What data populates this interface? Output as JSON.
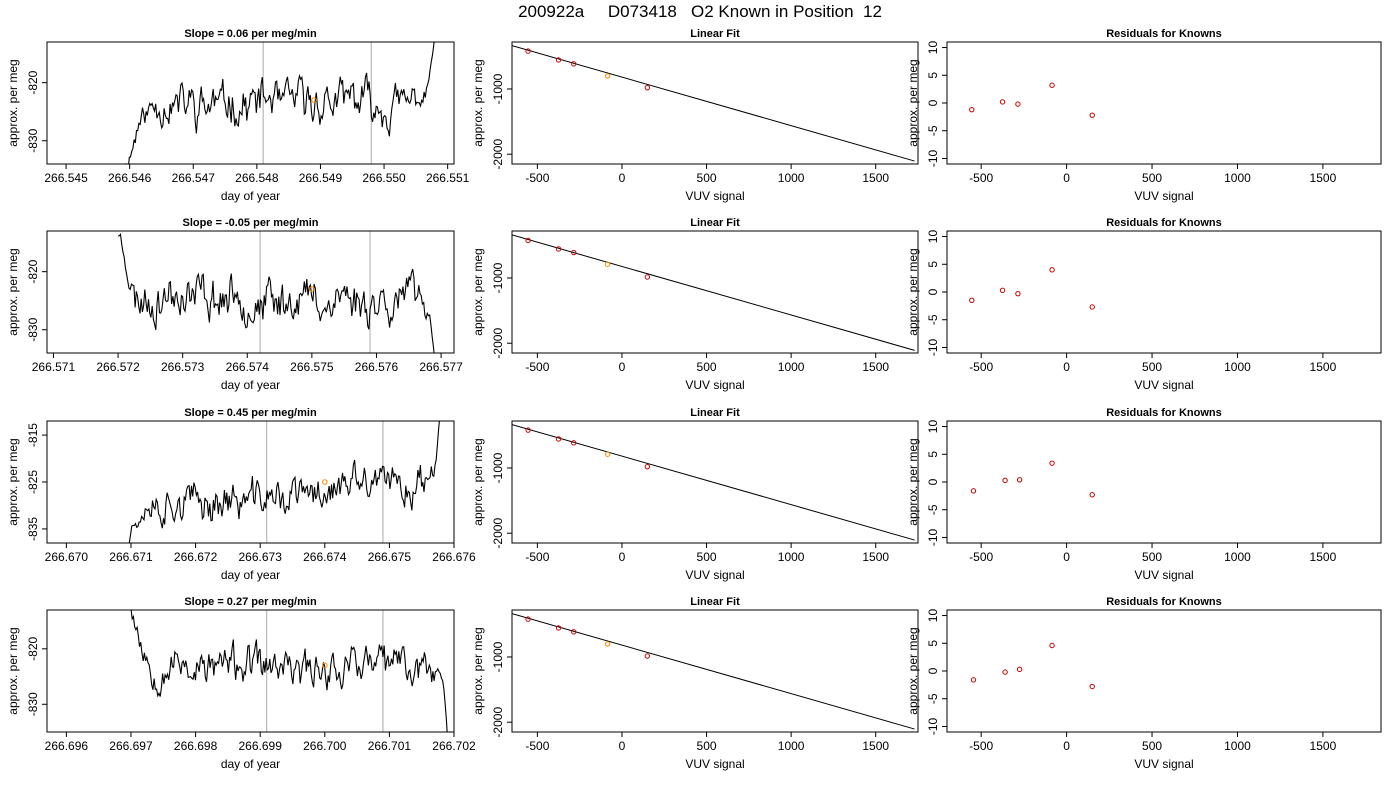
{
  "main_title": "200922a     D073418   O2 Known in Position  12",
  "colors": {
    "line": "#000000",
    "frame": "#000000",
    "window": "#bebebe",
    "point": "#ff8c00",
    "residual": "#cc0000"
  },
  "chart_data": [
    {
      "type": "line",
      "row": 0,
      "panel": "timeseries",
      "title": "Slope =  0.06  per meg/min",
      "xlabel": "day of year",
      "ylabel": "approx. per meg",
      "xlim": [
        266.5447,
        266.5511
      ],
      "ylim": [
        -834,
        -813
      ],
      "xticks": [
        266.545,
        266.546,
        266.547,
        266.548,
        266.549,
        266.55,
        266.551
      ],
      "xtick_labels": [
        "266.545",
        "266.546",
        "266.547",
        "266.548",
        "266.549",
        "266.550",
        "266.551"
      ],
      "yticks": [
        -820,
        -830
      ],
      "ytick_labels": [
        "-820",
        "-830"
      ],
      "window_lines_x": [
        266.5481,
        266.5498
      ],
      "x_start": 266.5459,
      "x_end": 266.5508,
      "shape": {
        "level": -823.4,
        "amp": 2.1,
        "seed": 11,
        "drift": [
          [
            0.0,
            -835
          ],
          [
            0.025,
            -832
          ],
          [
            0.05,
            -827
          ],
          [
            0.08,
            -825
          ],
          [
            0.1,
            -823.5
          ]
        ],
        "tail": [
          [
            0.9,
            -823
          ],
          [
            0.97,
            -822
          ],
          [
            1.0,
            -812
          ]
        ]
      },
      "highlight": {
        "x": 266.5489,
        "y": -823
      },
      "grid": false,
      "legend": "none"
    },
    {
      "type": "scatter",
      "row": 0,
      "panel": "fit",
      "title": "Linear Fit",
      "xlabel": "VUV signal",
      "ylabel": "approx. per meg",
      "xlim": [
        -650,
        1750
      ],
      "ylim": [
        -2150,
        -280
      ],
      "xticks": [
        -500,
        0,
        500,
        1000,
        1500
      ],
      "xtick_labels": [
        "-500",
        "0",
        "500",
        "1000",
        "1500"
      ],
      "yticks": [
        -1000,
        -2000
      ],
      "ytick_labels": [
        "-1000",
        "-2000"
      ],
      "x": [
        -555,
        -375,
        -285,
        -85,
        150
      ],
      "y": [
        -420,
        -555,
        -615,
        -800,
        -980
      ],
      "highlight_index": 3,
      "fit_line": {
        "x": [
          -650,
          1730
        ],
        "y": [
          -335,
          -2105
        ]
      },
      "grid": false,
      "legend": "none"
    },
    {
      "type": "scatter",
      "row": 0,
      "panel": "residuals",
      "title": "Residuals for Knowns",
      "xlabel": "VUV signal",
      "ylabel": "approx. per meg",
      "xlim": [
        -700,
        1840
      ],
      "ylim": [
        -11,
        11
      ],
      "xticks": [
        -500,
        0,
        500,
        1000,
        1500
      ],
      "xtick_labels": [
        "-500",
        "0",
        "500",
        "1000",
        "1500"
      ],
      "yticks": [
        10,
        5,
        0,
        -5,
        -10
      ],
      "ytick_labels": [
        "10",
        "5",
        "0",
        "-5",
        "-10"
      ],
      "x": [
        -555,
        -375,
        -285,
        -85,
        150
      ],
      "y": [
        -1.2,
        0.2,
        -0.2,
        3.2,
        -2.2
      ],
      "grid": false,
      "legend": "none"
    },
    {
      "type": "line",
      "row": 1,
      "panel": "timeseries",
      "title": "Slope =  -0.05  per meg/min",
      "xlabel": "day of year",
      "ylabel": "approx. per meg",
      "xlim": [
        266.5709,
        266.5772
      ],
      "ylim": [
        -834,
        -813
      ],
      "xticks": [
        266.571,
        266.572,
        266.573,
        266.574,
        266.575,
        266.576,
        266.577
      ],
      "xtick_labels": [
        "266.571",
        "266.572",
        "266.573",
        "266.574",
        "266.575",
        "266.576",
        "266.577"
      ],
      "yticks": [
        -820,
        -830
      ],
      "ytick_labels": [
        "-820",
        "-830"
      ],
      "window_lines_x": [
        266.5742,
        266.5759
      ],
      "x_start": 266.572,
      "x_end": 266.5769,
      "shape": {
        "level": -824.7,
        "amp": 2.2,
        "seed": 23,
        "drift": [
          [
            0.0,
            -813
          ],
          [
            0.02,
            -816
          ],
          [
            0.035,
            -821
          ],
          [
            0.05,
            -824
          ]
        ],
        "tail": [
          [
            0.94,
            -824
          ],
          [
            0.985,
            -828
          ],
          [
            1.0,
            -835
          ]
        ]
      },
      "highlight": {
        "x": 266.575,
        "y": -823
      },
      "grid": false,
      "legend": "none"
    },
    {
      "type": "scatter",
      "row": 1,
      "panel": "fit",
      "title": "Linear Fit",
      "xlabel": "VUV signal",
      "ylabel": "approx. per meg",
      "xlim": [
        -650,
        1750
      ],
      "ylim": [
        -2150,
        -280
      ],
      "xticks": [
        -500,
        0,
        500,
        1000,
        1500
      ],
      "xtick_labels": [
        "-500",
        "0",
        "500",
        "1000",
        "1500"
      ],
      "yticks": [
        -1000,
        -2000
      ],
      "ytick_labels": [
        "-1000",
        "-2000"
      ],
      "x": [
        -555,
        -375,
        -285,
        -85,
        150
      ],
      "y": [
        -425,
        -555,
        -610,
        -790,
        -985
      ],
      "highlight_index": 3,
      "fit_line": {
        "x": [
          -650,
          1730
        ],
        "y": [
          -340,
          -2110
        ]
      },
      "grid": false,
      "legend": "none"
    },
    {
      "type": "scatter",
      "row": 1,
      "panel": "residuals",
      "title": "Residuals for Knowns",
      "xlabel": "VUV signal",
      "ylabel": "approx. per meg",
      "xlim": [
        -700,
        1840
      ],
      "ylim": [
        -11,
        11
      ],
      "xticks": [
        -500,
        0,
        500,
        1000,
        1500
      ],
      "xtick_labels": [
        "-500",
        "0",
        "500",
        "1000",
        "1500"
      ],
      "yticks": [
        10,
        5,
        0,
        -5,
        -10
      ],
      "ytick_labels": [
        "10",
        "5",
        "0",
        "-5",
        "-10"
      ],
      "x": [
        -555,
        -375,
        -285,
        -85,
        150
      ],
      "y": [
        -1.5,
        0.3,
        -0.3,
        4.0,
        -2.7
      ],
      "grid": false,
      "legend": "none"
    },
    {
      "type": "line",
      "row": 2,
      "panel": "timeseries",
      "title": "Slope =  0.45  per meg/min",
      "xlabel": "day of year",
      "ylabel": "approx. per meg",
      "xlim": [
        266.6697,
        266.676
      ],
      "ylim": [
        -838,
        -812
      ],
      "xticks": [
        266.67,
        266.671,
        266.672,
        266.673,
        266.674,
        266.675,
        266.676
      ],
      "xtick_labels": [
        "266.670",
        "266.671",
        "266.672",
        "266.673",
        "266.674",
        "266.675",
        "266.676"
      ],
      "yticks": [
        -815,
        -825,
        -835
      ],
      "ytick_labels": [
        "-815",
        "-825",
        "-835"
      ],
      "window_lines_x": [
        266.6731,
        266.6749
      ],
      "x_start": 266.6709,
      "x_end": 266.6758,
      "shape": {
        "level": -828.0,
        "amp": 2.4,
        "seed": 37,
        "trend": 6.5,
        "drift": [
          [
            0.0,
            -838
          ],
          [
            0.03,
            -834
          ],
          [
            0.06,
            -830
          ],
          [
            0.08,
            -829
          ]
        ],
        "tail": [
          [
            0.96,
            -822
          ],
          [
            1.0,
            -808
          ]
        ]
      },
      "highlight": {
        "x": 266.674,
        "y": -825
      },
      "grid": false,
      "legend": "none"
    },
    {
      "type": "scatter",
      "row": 2,
      "panel": "fit",
      "title": "Linear Fit",
      "xlabel": "VUV signal",
      "ylabel": "approx. per meg",
      "xlim": [
        -650,
        1750
      ],
      "ylim": [
        -2150,
        -280
      ],
      "xticks": [
        -500,
        0,
        500,
        1000,
        1500
      ],
      "xtick_labels": [
        "-500",
        "0",
        "500",
        "1000",
        "1500"
      ],
      "yticks": [
        -1000,
        -2000
      ],
      "ytick_labels": [
        "-1000",
        "-2000"
      ],
      "x": [
        -555,
        -375,
        -285,
        -85,
        150
      ],
      "y": [
        -420,
        -555,
        -615,
        -790,
        -980
      ],
      "highlight_index": 3,
      "fit_line": {
        "x": [
          -650,
          1730
        ],
        "y": [
          -335,
          -2105
        ]
      },
      "grid": false,
      "legend": "none"
    },
    {
      "type": "scatter",
      "row": 2,
      "panel": "residuals",
      "title": "Residuals for Knowns",
      "xlabel": "VUV signal",
      "ylabel": "approx. per meg",
      "xlim": [
        -700,
        1840
      ],
      "ylim": [
        -11,
        11
      ],
      "xticks": [
        -500,
        0,
        500,
        1000,
        1500
      ],
      "xtick_labels": [
        "-500",
        "0",
        "500",
        "1000",
        "1500"
      ],
      "yticks": [
        10,
        5,
        0,
        -5,
        -10
      ],
      "ytick_labels": [
        "10",
        "5",
        "0",
        "-5",
        "-10"
      ],
      "x": [
        -545,
        -360,
        -275,
        -85,
        150
      ],
      "y": [
        -1.6,
        0.3,
        0.4,
        3.4,
        -2.3
      ],
      "grid": false,
      "legend": "none"
    },
    {
      "type": "line",
      "row": 3,
      "panel": "timeseries",
      "title": "Slope =  0.27  per meg/min",
      "xlabel": "day of year",
      "ylabel": "approx. per meg",
      "xlim": [
        266.6957,
        266.702
      ],
      "ylim": [
        -835,
        -813
      ],
      "xticks": [
        266.696,
        266.697,
        266.698,
        266.699,
        266.7,
        266.701,
        266.702
      ],
      "xtick_labels": [
        "266.696",
        "266.697",
        "266.698",
        "266.699",
        "266.700",
        "266.701",
        "266.702"
      ],
      "yticks": [
        -820,
        -830
      ],
      "ytick_labels": [
        "-820",
        "-830"
      ],
      "window_lines_x": [
        266.6991,
        266.7009
      ],
      "x_start": 266.697,
      "x_end": 266.7019,
      "shape": {
        "level": -823.2,
        "amp": 2.0,
        "seed": 53,
        "drift": [
          [
            0.0,
            -812
          ],
          [
            0.02,
            -817
          ],
          [
            0.04,
            -821
          ],
          [
            0.06,
            -823
          ]
        ],
        "tail": [
          [
            0.95,
            -823
          ],
          [
            0.985,
            -826
          ],
          [
            1.0,
            -836
          ]
        ]
      },
      "highlight": {
        "x": 266.7,
        "y": -823
      },
      "grid": false,
      "legend": "none"
    },
    {
      "type": "scatter",
      "row": 3,
      "panel": "fit",
      "title": "Linear Fit",
      "xlabel": "VUV signal",
      "ylabel": "approx. per meg",
      "xlim": [
        -650,
        1750
      ],
      "ylim": [
        -2150,
        -280
      ],
      "xticks": [
        -500,
        0,
        500,
        1000,
        1500
      ],
      "xtick_labels": [
        "-500",
        "0",
        "500",
        "1000",
        "1500"
      ],
      "yticks": [
        -1000,
        -2000
      ],
      "ytick_labels": [
        "-1000",
        "-2000"
      ],
      "x": [
        -555,
        -375,
        -285,
        -85,
        150
      ],
      "y": [
        -420,
        -555,
        -615,
        -800,
        -985
      ],
      "highlight_index": 3,
      "fit_line": {
        "x": [
          -650,
          1730
        ],
        "y": [
          -335,
          -2105
        ]
      },
      "grid": false,
      "legend": "none"
    },
    {
      "type": "scatter",
      "row": 3,
      "panel": "residuals",
      "title": "Residuals for Knowns",
      "xlabel": "VUV signal",
      "ylabel": "approx. per meg",
      "xlim": [
        -700,
        1840
      ],
      "ylim": [
        -11,
        11
      ],
      "xticks": [
        -500,
        0,
        500,
        1000,
        1500
      ],
      "xtick_labels": [
        "-500",
        "0",
        "500",
        "1000",
        "1500"
      ],
      "yticks": [
        10,
        5,
        0,
        -5,
        -10
      ],
      "ytick_labels": [
        "10",
        "5",
        "0",
        "-5",
        "-10"
      ],
      "x": [
        -545,
        -360,
        -275,
        -85,
        150
      ],
      "y": [
        -1.6,
        -0.2,
        0.3,
        4.6,
        -2.8
      ],
      "grid": false,
      "legend": "none"
    }
  ]
}
